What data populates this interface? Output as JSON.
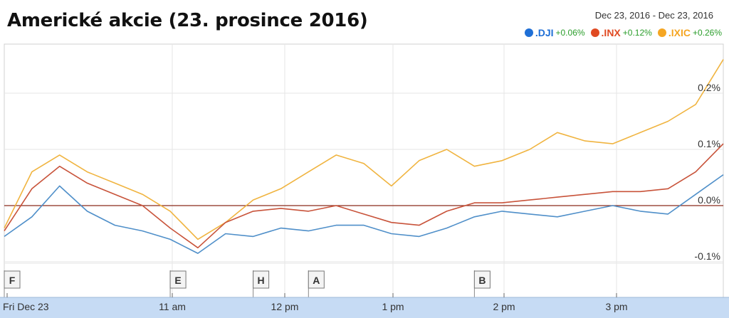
{
  "title": "Americké akcie (23. prosince 2016)",
  "date_range": "Dec 23, 2016  -  Dec 23, 2016",
  "colors": {
    "background": "#ffffff",
    "grid": "#e6e6e6",
    "axis_bar": "#c6dbf4",
    "baseline": "#8b2a1a"
  },
  "chart_data": {
    "type": "line",
    "title": "Americké akcie (23. prosince 2016)",
    "date_range": "Dec 23, 2016  -  Dec 23, 2016",
    "x_ticks": [
      "Fri Dec 23",
      "11 am",
      "12 pm",
      "1 pm",
      "2 pm",
      "3 pm"
    ],
    "y_ticks": [
      "0.2%",
      "0.1%",
      "0.0%",
      "-0.1%"
    ],
    "ylim": [
      -0.13,
      0.27
    ],
    "xlim": [
      "9:30",
      "16:00"
    ],
    "grid": true,
    "legend_position": "top-right",
    "x": [
      "9:30",
      "9:45",
      "10:00",
      "10:15",
      "10:30",
      "10:45",
      "11:00",
      "11:15",
      "11:30",
      "11:45",
      "12:00",
      "12:15",
      "12:30",
      "12:45",
      "13:00",
      "13:15",
      "13:30",
      "13:45",
      "14:00",
      "14:15",
      "14:30",
      "14:45",
      "15:00",
      "15:15",
      "15:30",
      "15:45",
      "16:00"
    ],
    "series": [
      {
        "name": ".DJI",
        "color": "#1f6fd6",
        "line_color": "#4f8fc9",
        "change": "+0.06%",
        "values": [
          -0.055,
          -0.02,
          0.035,
          -0.01,
          -0.035,
          -0.045,
          -0.06,
          -0.085,
          -0.05,
          -0.055,
          -0.04,
          -0.045,
          -0.035,
          -0.035,
          -0.05,
          -0.055,
          -0.04,
          -0.02,
          -0.01,
          -0.015,
          -0.02,
          -0.01,
          0.0,
          -0.01,
          -0.015,
          0.02,
          0.055
        ]
      },
      {
        "name": ".INX",
        "color": "#e04a22",
        "line_color": "#c8533a",
        "change": "+0.12%",
        "values": [
          -0.045,
          0.03,
          0.07,
          0.04,
          0.02,
          0.0,
          -0.04,
          -0.075,
          -0.03,
          -0.01,
          -0.005,
          -0.01,
          0.0,
          -0.015,
          -0.03,
          -0.035,
          -0.01,
          0.005,
          0.005,
          0.01,
          0.015,
          0.02,
          0.025,
          0.025,
          0.03,
          0.06,
          0.11
        ]
      },
      {
        "name": ".IXIC",
        "color": "#f5a623",
        "line_color": "#f0b440",
        "change": "+0.26%",
        "values": [
          -0.04,
          0.06,
          0.09,
          0.06,
          0.04,
          0.02,
          -0.01,
          -0.06,
          -0.03,
          0.01,
          0.03,
          0.06,
          0.09,
          0.075,
          0.035,
          0.08,
          0.1,
          0.07,
          0.08,
          0.1,
          0.13,
          0.115,
          0.11,
          0.13,
          0.15,
          0.18,
          0.26
        ]
      }
    ],
    "baseline": 0.0,
    "annotations": [
      {
        "label": "F",
        "time": "9:30"
      },
      {
        "label": "E",
        "time": "11:00"
      },
      {
        "label": "H",
        "time": "11:45"
      },
      {
        "label": "A",
        "time": "12:15"
      },
      {
        "label": "B",
        "time": "13:45"
      }
    ]
  }
}
